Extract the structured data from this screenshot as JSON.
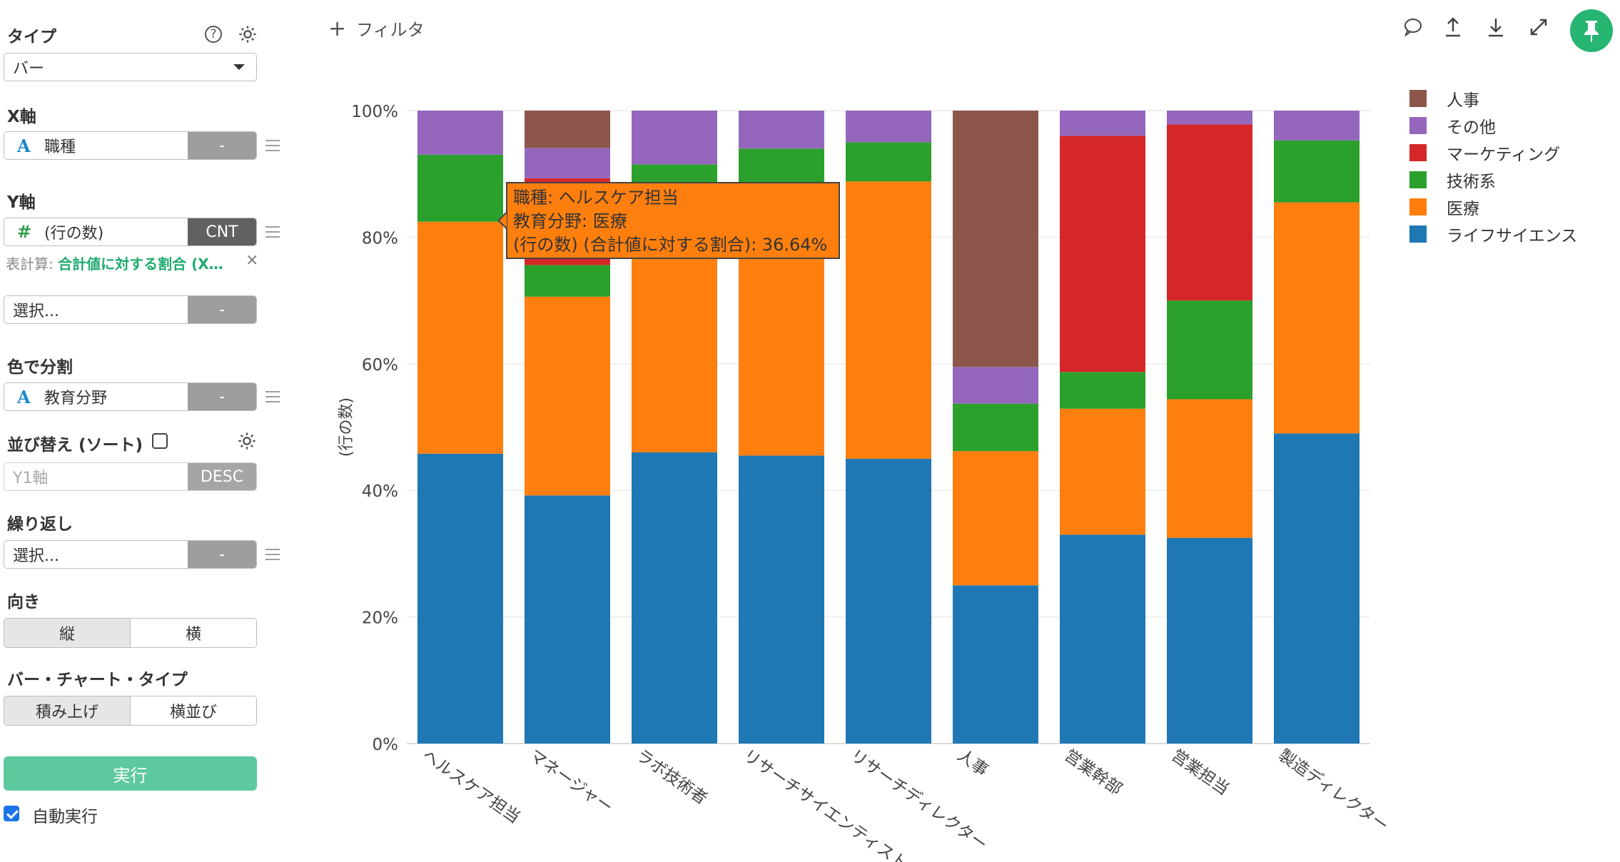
{
  "panel": {
    "type_label": "タイプ",
    "type_value": "バー",
    "help_icon": "question-icon",
    "settings_icon": "gear-icon",
    "x_label": "X軸",
    "x_field": "職種",
    "x_field_btn": "-",
    "y_label": "Y軸",
    "y_field": "(行の数)",
    "y_field_btn": "CNT",
    "calc_prefix": "表計算:",
    "calc_value": "合計値に対する割合 (X…",
    "extra_placeholder": "選択...",
    "extra_btn": "-",
    "color_label": "色で分割",
    "color_field": "教育分野",
    "color_btn": "-",
    "sort_label": "並び替え (ソート)",
    "sort_placeholder": "Y1軸",
    "sort_btn": "DESC",
    "repeat_label": "繰り返し",
    "repeat_placeholder": "選択...",
    "repeat_btn": "-",
    "orient_label": "向き",
    "orient_options": [
      "縦",
      "横"
    ],
    "bartype_label": "バー・チャート・タイプ",
    "bartype_options": [
      "積み上げ",
      "横並び"
    ],
    "run_label": "実行",
    "auto_run_label": "自動実行"
  },
  "toolbar": {
    "filter_label": "フィルタ",
    "icons": [
      "comment-icon",
      "upload-icon",
      "download-icon",
      "expand-icon",
      "pin-icon"
    ]
  },
  "tooltip": {
    "line1": "職種: ヘルスケア担当",
    "line2": "教育分野: 医療",
    "line3": "(行の数) (合計値に対する割合): 36.64%"
  },
  "colors": {
    "ライフサイエンス": "#1f77b4",
    "医療": "#ff7f0e",
    "技術系": "#2ca02c",
    "マーケティング": "#d62728",
    "その他": "#9467bd",
    "人事": "#8c564b"
  },
  "chart_data": {
    "type": "bar",
    "stacked": true,
    "ylabel": "(行の数)",
    "xlabel": "",
    "ylim": [
      0,
      100
    ],
    "yticks": [
      "0%",
      "20%",
      "40%",
      "60%",
      "80%",
      "100%"
    ],
    "grid": true,
    "legend_position": "top-right",
    "legend": [
      "人事",
      "その他",
      "マーケティング",
      "技術系",
      "医療",
      "ライフサイエンス"
    ],
    "categories": [
      "ヘルスケア担当",
      "マネージャー",
      "ラボ技術者",
      "リサーチサイエンティスト",
      "リサーチディレクター",
      "人事",
      "営業幹部",
      "営業担当",
      "製造ディレクター"
    ],
    "series": [
      {
        "name": "ライフサイエンス",
        "values": [
          45.8,
          39.2,
          46.0,
          45.5,
          45.0,
          25.0,
          33.0,
          32.5,
          49.0
        ]
      },
      {
        "name": "医療",
        "values": [
          36.64,
          31.4,
          38.4,
          40.5,
          43.8,
          21.2,
          19.9,
          21.9,
          36.5
        ]
      },
      {
        "name": "技術系",
        "values": [
          10.6,
          5.0,
          7.1,
          8.0,
          6.2,
          7.5,
          5.8,
          15.6,
          9.8
        ]
      },
      {
        "name": "マーケティング",
        "values": [
          0.0,
          13.7,
          0.0,
          0.0,
          0.0,
          0.0,
          37.3,
          27.8,
          0.0
        ]
      },
      {
        "name": "その他",
        "values": [
          6.96,
          4.8,
          8.5,
          6.0,
          5.0,
          5.8,
          4.0,
          2.2,
          4.7
        ]
      },
      {
        "name": "人事",
        "values": [
          0.0,
          5.9,
          0.0,
          0.0,
          0.0,
          40.5,
          0.0,
          0.0,
          0.0
        ]
      }
    ]
  }
}
